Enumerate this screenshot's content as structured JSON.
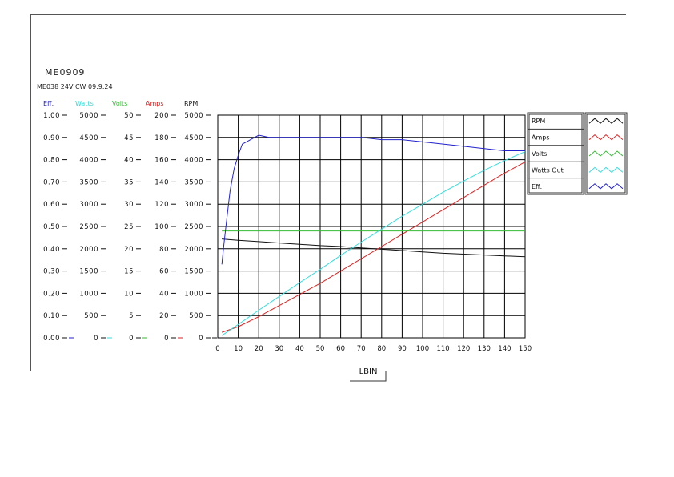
{
  "header": {
    "model": "ME0909",
    "subtitle": "ME038 24V CW 09.9.24"
  },
  "colors": {
    "eff": "#2222cc",
    "watts": "#33dddd",
    "volts": "#33bb33",
    "amps": "#dd2222",
    "rpm": "#111111",
    "grid": "#000000"
  },
  "chart_data": {
    "type": "line",
    "xlabel": "LBIN",
    "x_ticks": [
      0,
      10,
      20,
      30,
      40,
      50,
      60,
      70,
      80,
      90,
      100,
      110,
      120,
      130,
      140,
      150
    ],
    "xlim": [
      0,
      150
    ],
    "axes": [
      {
        "key": "eff",
        "label": "Eff.",
        "ticks": [
          "1.00",
          "0.90",
          "0.80",
          "0.70",
          "0.60",
          "0.50",
          "0.40",
          "0.30",
          "0.20",
          "0.10",
          "0.00"
        ],
        "range": [
          0,
          1
        ]
      },
      {
        "key": "watts",
        "label": "Watts",
        "ticks": [
          "5000",
          "4500",
          "4000",
          "3500",
          "3000",
          "2500",
          "2000",
          "1500",
          "1000",
          "500",
          "0"
        ],
        "range": [
          0,
          5000
        ]
      },
      {
        "key": "volts",
        "label": "Volts",
        "ticks": [
          "50",
          "45",
          "40",
          "35",
          "30",
          "25",
          "20",
          "15",
          "10",
          "5",
          "0"
        ],
        "range": [
          0,
          50
        ]
      },
      {
        "key": "amps",
        "label": "Amps",
        "ticks": [
          "200",
          "180",
          "160",
          "140",
          "120",
          "100",
          "80",
          "60",
          "40",
          "20",
          "0"
        ],
        "range": [
          0,
          200
        ]
      },
      {
        "key": "rpm",
        "label": "RPM",
        "ticks": [
          "5000",
          "4500",
          "4000",
          "3500",
          "3000",
          "2500",
          "2000",
          "1500",
          "1000",
          "500",
          "0"
        ],
        "range": [
          0,
          5000
        ]
      }
    ],
    "legend": [
      "RPM",
      "Amps",
      "Volts",
      "Watts Out",
      "Eff."
    ],
    "series": [
      {
        "name": "RPM",
        "axis": "rpm",
        "color": "#111111",
        "x": [
          2,
          10,
          20,
          30,
          40,
          50,
          60,
          70,
          80,
          90,
          100,
          110,
          120,
          130,
          140,
          150
        ],
        "y": [
          2220,
          2190,
          2160,
          2130,
          2100,
          2070,
          2050,
          2020,
          1990,
          1960,
          1930,
          1900,
          1880,
          1860,
          1840,
          1820
        ]
      },
      {
        "name": "Amps",
        "axis": "amps",
        "color": "#dd2222",
        "x": [
          2,
          10,
          20,
          30,
          40,
          50,
          60,
          70,
          80,
          90,
          100,
          110,
          120,
          130,
          140,
          150
        ],
        "y": [
          5,
          10,
          19,
          29,
          39,
          49,
          60,
          71,
          82,
          93,
          104,
          115,
          126,
          137,
          148,
          158
        ]
      },
      {
        "name": "Volts",
        "axis": "volts",
        "color": "#33bb33",
        "x": [
          2,
          150
        ],
        "y": [
          24,
          24
        ]
      },
      {
        "name": "Watts Out",
        "axis": "watts",
        "color": "#33dddd",
        "x": [
          2,
          10,
          20,
          30,
          40,
          50,
          60,
          70,
          80,
          90,
          100,
          110,
          120,
          130,
          140,
          150
        ],
        "y": [
          50,
          300,
          620,
          930,
          1240,
          1540,
          1850,
          2150,
          2440,
          2730,
          3000,
          3270,
          3520,
          3760,
          3980,
          4180
        ]
      },
      {
        "name": "Eff.",
        "axis": "eff",
        "color": "#2222cc",
        "x": [
          2,
          3,
          4,
          5,
          6,
          8,
          10,
          12,
          14,
          16,
          18,
          20,
          25,
          30,
          35,
          40,
          50,
          60,
          70,
          80,
          90,
          100,
          110,
          120,
          130,
          140,
          150
        ],
        "y": [
          0.33,
          0.42,
          0.5,
          0.58,
          0.66,
          0.76,
          0.82,
          0.87,
          0.88,
          0.89,
          0.9,
          0.91,
          0.9,
          0.9,
          0.9,
          0.9,
          0.9,
          0.9,
          0.9,
          0.89,
          0.89,
          0.88,
          0.87,
          0.86,
          0.85,
          0.84,
          0.84
        ]
      }
    ]
  }
}
